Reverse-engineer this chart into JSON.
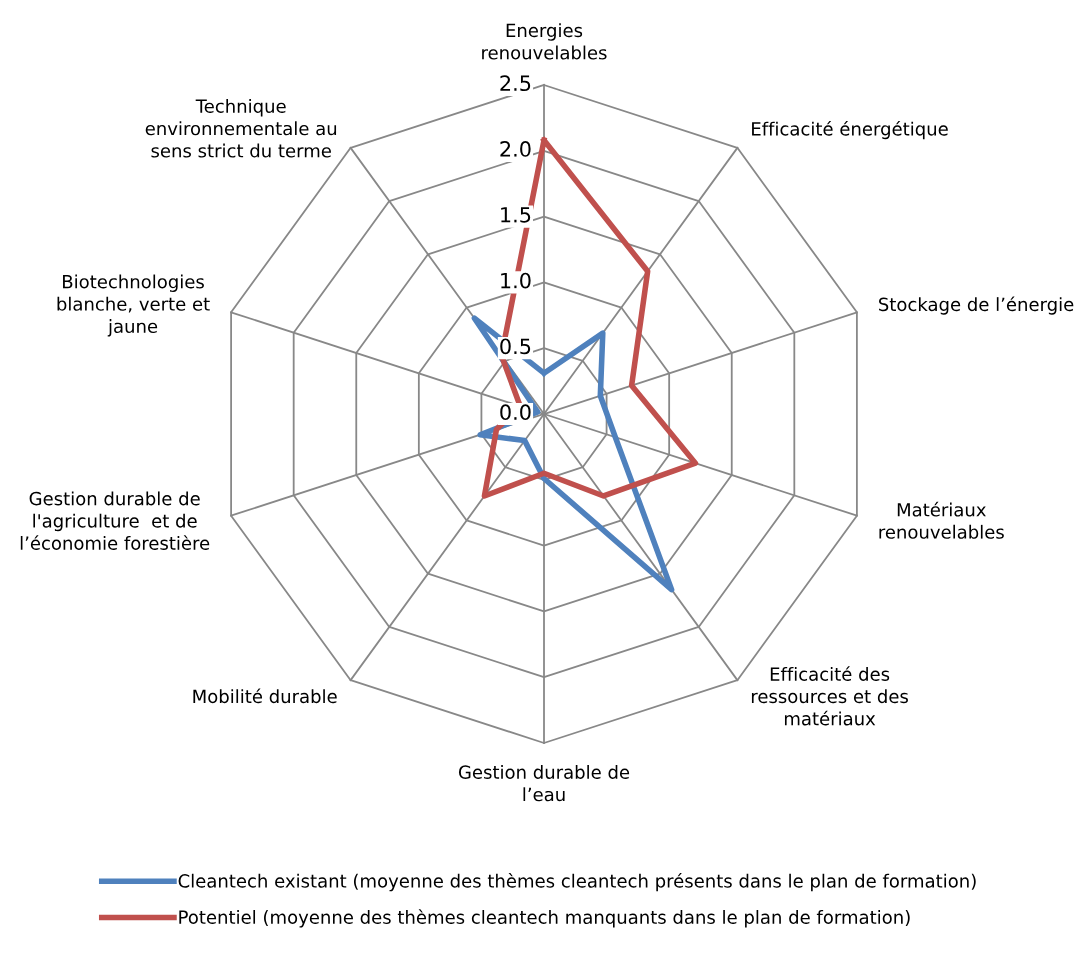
{
  "chart_data": {
    "type": "radar",
    "categories": [
      "Energies\nrenouvelables",
      "Efficacité énergétique",
      "Stockage de l’énergie",
      "Matériaux\nrenouvelables",
      "Efficacité des\nressources et des\nmatériaux",
      "Gestion durable de\nl’eau",
      "Mobilité durable",
      "Gestion durable de\nl'agriculture  et de\nl’économie forestière",
      "Biotechnologies\nblanche, verte et\njaune",
      "Technique\nenvironnementale au\nsens strict du terme"
    ],
    "series": [
      {
        "name": "Cleantech existant (moyenne des thèmes cleantech présents dans le plan de formation)",
        "color": "#4f81bd",
        "values": [
          0.31,
          0.76,
          0.45,
          0.57,
          1.65,
          0.49,
          0.25,
          0.51,
          0.05,
          0.9
        ]
      },
      {
        "name": "Potentiel (moyenne des thèmes cleantech manquants dans le plan de formation)",
        "color": "#c0504d",
        "values": [
          2.08,
          1.34,
          0.7,
          1.21,
          0.77,
          0.45,
          0.77,
          0.38,
          0.19,
          0.55
        ]
      }
    ],
    "ylim": [
      0,
      2.5
    ],
    "yticks": [
      {
        "value": 0,
        "label": "0.0"
      },
      {
        "value": 0.5,
        "label": "0.5"
      },
      {
        "value": 1,
        "label": "1.0"
      },
      {
        "value": 1.5,
        "label": "1.5"
      },
      {
        "value": 2,
        "label": "2.0"
      },
      {
        "value": 2.5,
        "label": "2.5"
      }
    ],
    "grid": true,
    "legend": "bottom",
    "marker": "none",
    "line_style": "solid"
  }
}
